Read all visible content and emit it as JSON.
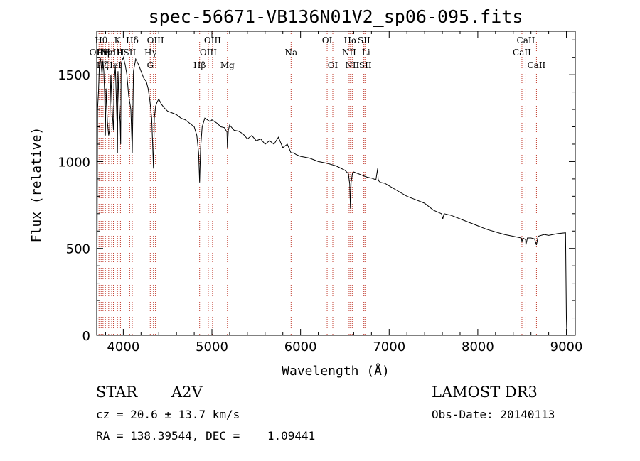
{
  "chart_data": {
    "type": "line",
    "title": "spec-56671-VB136N01V2_sp06-095.fits",
    "xlabel": "Wavelength (Å)",
    "ylabel": "Flux (relative)",
    "xlim": [
      3700,
      9100
    ],
    "ylim": [
      0,
      1750
    ],
    "xticks": [
      4000,
      5000,
      6000,
      7000,
      8000,
      9000
    ],
    "xtick_labels": [
      "4000",
      "5000",
      "6000",
      "7000",
      "8000",
      "9000"
    ],
    "yticks": [
      0,
      500,
      1000,
      1500
    ],
    "ytick_labels": [
      "0",
      "500",
      "1000",
      "1500"
    ],
    "series": [
      {
        "name": "spectrum",
        "x": [
          3700,
          3705,
          3710,
          3715,
          3720,
          3730,
          3740,
          3750,
          3760,
          3770,
          3780,
          3790,
          3798,
          3805,
          3820,
          3835,
          3845,
          3860,
          3870,
          3880,
          3889,
          3895,
          3910,
          3930,
          3934,
          3940,
          3955,
          3965,
          3970,
          3975,
          3985,
          4000,
          4020,
          4040,
          4060,
          4085,
          4101,
          4115,
          4140,
          4170,
          4200,
          4230,
          4260,
          4280,
          4300,
          4320,
          4330,
          4340,
          4350,
          4365,
          4380,
          4400,
          4430,
          4460,
          4500,
          4550,
          4600,
          4650,
          4700,
          4750,
          4800,
          4830,
          4850,
          4861,
          4872,
          4890,
          4920,
          4950,
          4980,
          5000,
          5030,
          5060,
          5100,
          5140,
          5170,
          5175,
          5185,
          5200,
          5250,
          5300,
          5350,
          5400,
          5450,
          5500,
          5550,
          5600,
          5650,
          5700,
          5750,
          5800,
          5850,
          5893,
          5920,
          5950,
          6000,
          6100,
          6200,
          6300,
          6400,
          6500,
          6540,
          6555,
          6563,
          6570,
          6585,
          6600,
          6650,
          6700,
          6750,
          6800,
          6850,
          6870,
          6875,
          6880,
          6900,
          6950,
          7000,
          7100,
          7200,
          7300,
          7400,
          7500,
          7590,
          7605,
          7620,
          7700,
          7800,
          7900,
          8000,
          8100,
          8200,
          8300,
          8400,
          8490,
          8498,
          8510,
          8540,
          8542,
          8560,
          8600,
          8640,
          8662,
          8680,
          8750,
          8800,
          8850,
          8900,
          8990,
          9000,
          9005
        ],
        "values": [
          0,
          600,
          1300,
          1360,
          1400,
          1550,
          1600,
          1560,
          1500,
          1580,
          1520,
          1380,
          1150,
          1420,
          1230,
          1150,
          1180,
          1500,
          1350,
          1250,
          1180,
          1450,
          1550,
          1200,
          1050,
          1520,
          1300,
          1220,
          1100,
          1560,
          1580,
          1600,
          1560,
          1500,
          1380,
          1300,
          1050,
          1520,
          1590,
          1560,
          1520,
          1480,
          1460,
          1420,
          1350,
          1250,
          1120,
          960,
          1250,
          1320,
          1340,
          1360,
          1330,
          1310,
          1290,
          1280,
          1270,
          1250,
          1240,
          1220,
          1200,
          1150,
          1050,
          880,
          1080,
          1200,
          1250,
          1240,
          1230,
          1240,
          1230,
          1220,
          1200,
          1195,
          1170,
          1080,
          1180,
          1210,
          1180,
          1175,
          1160,
          1130,
          1150,
          1120,
          1130,
          1100,
          1120,
          1100,
          1140,
          1080,
          1100,
          1050,
          1050,
          1040,
          1030,
          1020,
          1000,
          990,
          975,
          950,
          930,
          870,
          730,
          880,
          930,
          940,
          930,
          920,
          910,
          905,
          895,
          960,
          900,
          890,
          880,
          875,
          860,
          830,
          800,
          780,
          760,
          720,
          700,
          670,
          700,
          690,
          670,
          650,
          630,
          610,
          595,
          580,
          570,
          560,
          540,
          560,
          550,
          520,
          560,
          560,
          555,
          520,
          570,
          580,
          575,
          580,
          585,
          590,
          100,
          0
        ]
      }
    ],
    "lines": [
      {
        "wave": 3726,
        "label": "OII",
        "row": 1,
        "dx": -4
      },
      {
        "wave": 3750,
        "label": "Hθ",
        "row": 0,
        "dx": 0
      },
      {
        "wave": 3771,
        "label": "Hη",
        "row": 1,
        "dx": 0
      },
      {
        "wave": 3798,
        "label": "Hζ",
        "row": 2,
        "dx": -4
      },
      {
        "wave": 3835,
        "label": "Hε",
        "row": 1,
        "dx": 0
      },
      {
        "wave": 3869,
        "label": "NeIII",
        "row": 1,
        "dx": 0
      },
      {
        "wave": 3889,
        "label": "HeI",
        "row": 2,
        "dx": 0
      },
      {
        "wave": 3934,
        "label": "K",
        "row": 0,
        "dx": 0
      },
      {
        "wave": 3968,
        "label": "H",
        "row": 1,
        "dx": 0
      },
      {
        "wave": 4101,
        "label": "Hδ",
        "row": 0,
        "dx": 0
      },
      {
        "wave": 4072,
        "label": "SII",
        "row": 1,
        "dx": 0
      },
      {
        "wave": 4304,
        "label": "G",
        "row": 2,
        "dx": 0
      },
      {
        "wave": 4340,
        "label": "Hγ",
        "row": 1,
        "dx": -4
      },
      {
        "wave": 4363,
        "label": "OIII",
        "row": 0,
        "dx": 0
      },
      {
        "wave": 4861,
        "label": "Hβ",
        "row": 2,
        "dx": 0
      },
      {
        "wave": 4959,
        "label": "OIII",
        "row": 1,
        "dx": 0
      },
      {
        "wave": 5007,
        "label": "OIII",
        "row": 0,
        "dx": 0
      },
      {
        "wave": 5175,
        "label": "Mg",
        "row": 2,
        "dx": 0
      },
      {
        "wave": 5893,
        "label": "Na",
        "row": 1,
        "dx": 0
      },
      {
        "wave": 6300,
        "label": "OI",
        "row": 0,
        "dx": 0
      },
      {
        "wave": 6364,
        "label": "OI",
        "row": 2,
        "dx": 0
      },
      {
        "wave": 6548,
        "label": "NII",
        "row": 1,
        "dx": 0
      },
      {
        "wave": 6563,
        "label": "Hα",
        "row": 0,
        "dx": 0
      },
      {
        "wave": 6583,
        "label": "NII",
        "row": 2,
        "dx": 0
      },
      {
        "wave": 6707,
        "label": "Li",
        "row": 1,
        "dx": 4
      },
      {
        "wave": 6716,
        "label": "SII",
        "row": 0,
        "dx": 0
      },
      {
        "wave": 6731,
        "label": "SII",
        "row": 2,
        "dx": 0
      },
      {
        "wave": 8498,
        "label": "CaII",
        "row": 1,
        "dx": 0
      },
      {
        "wave": 8542,
        "label": "CaII",
        "row": 0,
        "dx": 0
      },
      {
        "wave": 8662,
        "label": "CaII",
        "row": 2,
        "dx": 0
      }
    ]
  },
  "info": {
    "object_type": "STAR",
    "subclass": "A2V",
    "survey": "LAMOST DR3",
    "cz": "cz = 20.6 ± 13.7 km/s",
    "obs_date": "Obs-Date: 20140113",
    "coords": "RA = 138.39544, DEC =    1.09441"
  }
}
